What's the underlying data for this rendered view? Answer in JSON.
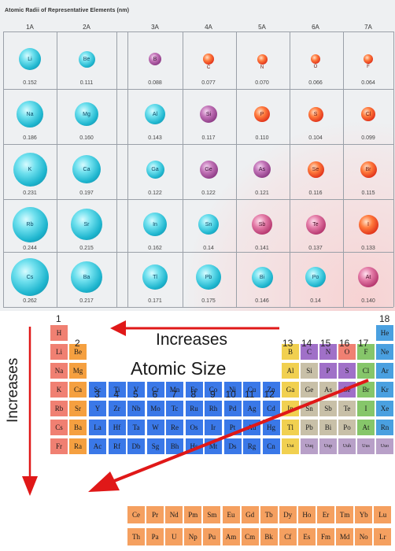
{
  "radii_table": {
    "title": "Atomic Radii of Representative Elements (nm)",
    "groups": [
      "1A",
      "2A",
      "3A",
      "4A",
      "5A",
      "6A",
      "7A"
    ],
    "rows": [
      [
        {
          "s": "Li",
          "r": "0.152",
          "c": "cyan"
        },
        {
          "s": "Be",
          "r": "0.111",
          "c": "cyan"
        },
        {
          "s": "B",
          "r": "0.088",
          "c": "purple"
        },
        {
          "s": "C",
          "r": "0.077",
          "c": "red"
        },
        {
          "s": "N",
          "r": "0.070",
          "c": "red"
        },
        {
          "s": "O",
          "r": "0.066",
          "c": "red"
        },
        {
          "s": "F",
          "r": "0.064",
          "c": "red"
        }
      ],
      [
        {
          "s": "Na",
          "r": "0.186",
          "c": "cyan"
        },
        {
          "s": "Mg",
          "r": "0.160",
          "c": "cyan"
        },
        {
          "s": "Al",
          "r": "0.143",
          "c": "cyan"
        },
        {
          "s": "Si",
          "r": "0.117",
          "c": "purple"
        },
        {
          "s": "P",
          "r": "0.110",
          "c": "red"
        },
        {
          "s": "S",
          "r": "0.104",
          "c": "red"
        },
        {
          "s": "Cl",
          "r": "0.099",
          "c": "red"
        }
      ],
      [
        {
          "s": "K",
          "r": "0.231",
          "c": "cyan"
        },
        {
          "s": "Ca",
          "r": "0.197",
          "c": "cyan"
        },
        {
          "s": "Ga",
          "r": "0.122",
          "c": "cyan"
        },
        {
          "s": "Ge",
          "r": "0.122",
          "c": "purple"
        },
        {
          "s": "As",
          "r": "0.121",
          "c": "purple"
        },
        {
          "s": "Se",
          "r": "0.116",
          "c": "red"
        },
        {
          "s": "Br",
          "r": "0.115",
          "c": "red"
        }
      ],
      [
        {
          "s": "Rb",
          "r": "0.244",
          "c": "cyan"
        },
        {
          "s": "Sr",
          "r": "0.215",
          "c": "cyan"
        },
        {
          "s": "In",
          "r": "0.162",
          "c": "cyan"
        },
        {
          "s": "Sn",
          "r": "0.14",
          "c": "cyan"
        },
        {
          "s": "Sb",
          "r": "0.141",
          "c": "pink"
        },
        {
          "s": "Te",
          "r": "0.137",
          "c": "pink"
        },
        {
          "s": "I",
          "r": "0.133",
          "c": "red"
        }
      ],
      [
        {
          "s": "Cs",
          "r": "0.262",
          "c": "cyan"
        },
        {
          "s": "Ba",
          "r": "0.217",
          "c": "cyan"
        },
        {
          "s": "Tl",
          "r": "0.171",
          "c": "cyan"
        },
        {
          "s": "Pb",
          "r": "0.175",
          "c": "cyan"
        },
        {
          "s": "Bi",
          "r": "0.146",
          "c": "cyan"
        },
        {
          "s": "Po",
          "r": "0.14",
          "c": "cyan"
        },
        {
          "s": "At",
          "r": "0.140",
          "c": "pink"
        }
      ]
    ]
  },
  "periodic": {
    "labels": {
      "increases_top": "Increases",
      "increases_side": "Increases",
      "atomic_size": "Atomic Size"
    },
    "group_numbers": {
      "g1": "1",
      "g2": "2",
      "g13": "13",
      "g14": "14",
      "g15": "15",
      "g16": "16",
      "g17": "17",
      "g18": "18",
      "transition": [
        "3",
        "4",
        "5",
        "6",
        "7",
        "8",
        "9",
        "10",
        "11",
        "12"
      ]
    },
    "colors": {
      "alkali": "#f08072",
      "alkaline": "#f5a040",
      "transition": "#3a78e8",
      "post": "#f1d050",
      "metalloid": "#c8c0a8",
      "nonmetal": "#a070c8",
      "halogen": "#86c66a",
      "noble": "#4aa0e0",
      "f_block": "#f5a060",
      "synthetic": "#b8a0c8",
      "arrow": "#e01818"
    },
    "elements": [
      {
        "s": "H",
        "r": 0,
        "c": 0,
        "k": "alkali"
      },
      {
        "s": "He",
        "r": 0,
        "c": 17,
        "k": "noble"
      },
      {
        "s": "Li",
        "r": 1,
        "c": 0,
        "k": "alkali"
      },
      {
        "s": "Be",
        "r": 1,
        "c": 1,
        "k": "alkaline"
      },
      {
        "s": "B",
        "r": 1,
        "c": 12,
        "k": "post"
      },
      {
        "s": "C",
        "r": 1,
        "c": 13,
        "k": "nonmetal"
      },
      {
        "s": "N",
        "r": 1,
        "c": 14,
        "k": "nonmetal"
      },
      {
        "s": "O",
        "r": 1,
        "c": 15,
        "k": "alkali"
      },
      {
        "s": "F",
        "r": 1,
        "c": 16,
        "k": "halogen"
      },
      {
        "s": "Ne",
        "r": 1,
        "c": 17,
        "k": "noble"
      },
      {
        "s": "Na",
        "r": 2,
        "c": 0,
        "k": "alkali"
      },
      {
        "s": "Mg",
        "r": 2,
        "c": 1,
        "k": "alkaline"
      },
      {
        "s": "Al",
        "r": 2,
        "c": 12,
        "k": "post"
      },
      {
        "s": "Si",
        "r": 2,
        "c": 13,
        "k": "metalloid"
      },
      {
        "s": "P",
        "r": 2,
        "c": 14,
        "k": "nonmetal"
      },
      {
        "s": "S",
        "r": 2,
        "c": 15,
        "k": "nonmetal"
      },
      {
        "s": "Cl",
        "r": 2,
        "c": 16,
        "k": "halogen"
      },
      {
        "s": "Ar",
        "r": 2,
        "c": 17,
        "k": "noble"
      },
      {
        "s": "K",
        "r": 3,
        "c": 0,
        "k": "alkali"
      },
      {
        "s": "Ca",
        "r": 3,
        "c": 1,
        "k": "alkaline"
      },
      {
        "s": "Sc",
        "r": 3,
        "c": 2,
        "k": "transition"
      },
      {
        "s": "Ti",
        "r": 3,
        "c": 3,
        "k": "transition"
      },
      {
        "s": "V",
        "r": 3,
        "c": 4,
        "k": "transition"
      },
      {
        "s": "Cr",
        "r": 3,
        "c": 5,
        "k": "transition"
      },
      {
        "s": "Mn",
        "r": 3,
        "c": 6,
        "k": "transition"
      },
      {
        "s": "Fe",
        "r": 3,
        "c": 7,
        "k": "transition"
      },
      {
        "s": "Co",
        "r": 3,
        "c": 8,
        "k": "transition"
      },
      {
        "s": "Ni",
        "r": 3,
        "c": 9,
        "k": "transition"
      },
      {
        "s": "Cu",
        "r": 3,
        "c": 10,
        "k": "transition"
      },
      {
        "s": "Zn",
        "r": 3,
        "c": 11,
        "k": "transition"
      },
      {
        "s": "Ga",
        "r": 3,
        "c": 12,
        "k": "post"
      },
      {
        "s": "Ge",
        "r": 3,
        "c": 13,
        "k": "metalloid"
      },
      {
        "s": "As",
        "r": 3,
        "c": 14,
        "k": "metalloid"
      },
      {
        "s": "Se",
        "r": 3,
        "c": 15,
        "k": "nonmetal"
      },
      {
        "s": "Br",
        "r": 3,
        "c": 16,
        "k": "halogen"
      },
      {
        "s": "Kr",
        "r": 3,
        "c": 17,
        "k": "noble"
      },
      {
        "s": "Rb",
        "r": 4,
        "c": 0,
        "k": "alkali"
      },
      {
        "s": "Sr",
        "r": 4,
        "c": 1,
        "k": "alkaline"
      },
      {
        "s": "Y",
        "r": 4,
        "c": 2,
        "k": "transition"
      },
      {
        "s": "Zr",
        "r": 4,
        "c": 3,
        "k": "transition"
      },
      {
        "s": "Nb",
        "r": 4,
        "c": 4,
        "k": "transition"
      },
      {
        "s": "Mo",
        "r": 4,
        "c": 5,
        "k": "transition"
      },
      {
        "s": "Tc",
        "r": 4,
        "c": 6,
        "k": "transition"
      },
      {
        "s": "Ru",
        "r": 4,
        "c": 7,
        "k": "transition"
      },
      {
        "s": "Rh",
        "r": 4,
        "c": 8,
        "k": "transition"
      },
      {
        "s": "Pd",
        "r": 4,
        "c": 9,
        "k": "transition"
      },
      {
        "s": "Ag",
        "r": 4,
        "c": 10,
        "k": "transition"
      },
      {
        "s": "Cd",
        "r": 4,
        "c": 11,
        "k": "transition"
      },
      {
        "s": "In",
        "r": 4,
        "c": 12,
        "k": "post"
      },
      {
        "s": "Sn",
        "r": 4,
        "c": 13,
        "k": "metalloid"
      },
      {
        "s": "Sb",
        "r": 4,
        "c": 14,
        "k": "metalloid"
      },
      {
        "s": "Te",
        "r": 4,
        "c": 15,
        "k": "metalloid"
      },
      {
        "s": "I",
        "r": 4,
        "c": 16,
        "k": "halogen"
      },
      {
        "s": "Xe",
        "r": 4,
        "c": 17,
        "k": "noble"
      },
      {
        "s": "Cs",
        "r": 5,
        "c": 0,
        "k": "alkali"
      },
      {
        "s": "Ba",
        "r": 5,
        "c": 1,
        "k": "alkaline"
      },
      {
        "s": "La",
        "r": 5,
        "c": 2,
        "k": "transition"
      },
      {
        "s": "Hf",
        "r": 5,
        "c": 3,
        "k": "transition"
      },
      {
        "s": "Ta",
        "r": 5,
        "c": 4,
        "k": "transition"
      },
      {
        "s": "W",
        "r": 5,
        "c": 5,
        "k": "transition"
      },
      {
        "s": "Re",
        "r": 5,
        "c": 6,
        "k": "transition"
      },
      {
        "s": "Os",
        "r": 5,
        "c": 7,
        "k": "transition"
      },
      {
        "s": "Ir",
        "r": 5,
        "c": 8,
        "k": "transition"
      },
      {
        "s": "Pt",
        "r": 5,
        "c": 9,
        "k": "transition"
      },
      {
        "s": "Au",
        "r": 5,
        "c": 10,
        "k": "transition"
      },
      {
        "s": "Hg",
        "r": 5,
        "c": 11,
        "k": "transition"
      },
      {
        "s": "Tl",
        "r": 5,
        "c": 12,
        "k": "post"
      },
      {
        "s": "Pb",
        "r": 5,
        "c": 13,
        "k": "metalloid"
      },
      {
        "s": "Bi",
        "r": 5,
        "c": 14,
        "k": "metalloid"
      },
      {
        "s": "Po",
        "r": 5,
        "c": 15,
        "k": "metalloid"
      },
      {
        "s": "At",
        "r": 5,
        "c": 16,
        "k": "halogen"
      },
      {
        "s": "Rn",
        "r": 5,
        "c": 17,
        "k": "noble"
      },
      {
        "s": "Fr",
        "r": 6,
        "c": 0,
        "k": "alkali"
      },
      {
        "s": "Ra",
        "r": 6,
        "c": 1,
        "k": "alkaline"
      },
      {
        "s": "Ac",
        "r": 6,
        "c": 2,
        "k": "transition"
      },
      {
        "s": "Rf",
        "r": 6,
        "c": 3,
        "k": "transition"
      },
      {
        "s": "Db",
        "r": 6,
        "c": 4,
        "k": "transition"
      },
      {
        "s": "Sg",
        "r": 6,
        "c": 5,
        "k": "transition"
      },
      {
        "s": "Bh",
        "r": 6,
        "c": 6,
        "k": "transition"
      },
      {
        "s": "Hs",
        "r": 6,
        "c": 7,
        "k": "transition"
      },
      {
        "s": "Mt",
        "r": 6,
        "c": 8,
        "k": "transition"
      },
      {
        "s": "Ds",
        "r": 6,
        "c": 9,
        "k": "transition"
      },
      {
        "s": "Rg",
        "r": 6,
        "c": 10,
        "k": "transition"
      },
      {
        "s": "Cn",
        "r": 6,
        "c": 11,
        "k": "transition"
      },
      {
        "s": "Uut",
        "r": 6,
        "c": 12,
        "k": "post",
        "t": 1
      },
      {
        "s": "Uuq",
        "r": 6,
        "c": 13,
        "k": "synthetic",
        "t": 1
      },
      {
        "s": "Uup",
        "r": 6,
        "c": 14,
        "k": "synthetic",
        "t": 1
      },
      {
        "s": "Uuh",
        "r": 6,
        "c": 15,
        "k": "synthetic",
        "t": 1
      },
      {
        "s": "Uus",
        "r": 6,
        "c": 16,
        "k": "synthetic",
        "t": 1
      },
      {
        "s": "Uuo",
        "r": 6,
        "c": 17,
        "k": "synthetic",
        "t": 1
      }
    ],
    "lanthanides": [
      "Ce",
      "Pr",
      "Nd",
      "Pm",
      "Sm",
      "Eu",
      "Gd",
      "Tb",
      "Dy",
      "Ho",
      "Er",
      "Tm",
      "Yb",
      "Lu"
    ],
    "actinides": [
      "Th",
      "Pa",
      "U",
      "Np",
      "Pu",
      "Am",
      "Cm",
      "Bk",
      "Cf",
      "Es",
      "Fm",
      "Md",
      "No",
      "Lr"
    ]
  }
}
